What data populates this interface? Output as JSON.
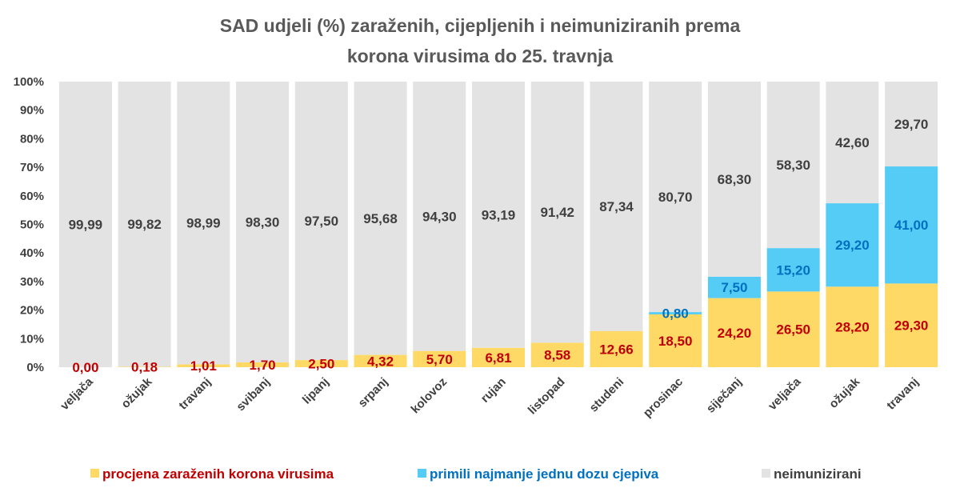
{
  "chart_data": {
    "type": "bar",
    "stacked": true,
    "title": [
      "SAD udjeli (%) zaraženih, cijepljenih i neimuniziranih prema",
      "korona virusima do 25. travnja"
    ],
    "title_color": "#595959",
    "axis_label_color": "#404040",
    "categories": [
      "veljača",
      "ožujak",
      "travanj",
      "svibanj",
      "lipanj",
      "srpanj",
      "kolovoz",
      "rujan",
      "listopad",
      "studeni",
      "prosinac",
      "siječanj",
      "veljača",
      "ožujak",
      "travanj"
    ],
    "ylim": [
      0,
      100
    ],
    "y_ticks": [
      0,
      10,
      20,
      30,
      40,
      50,
      60,
      70,
      80,
      90,
      100
    ],
    "y_tick_labels": [
      "0%",
      "10%",
      "20%",
      "30%",
      "40%",
      "50%",
      "60%",
      "70%",
      "80%",
      "90%",
      "100%"
    ],
    "xlabel": "",
    "ylabel": "",
    "grid": false,
    "legend_position": "bottom",
    "series": [
      {
        "key": "infected",
        "name": "procjena zaraženih korona virusima",
        "color": "#FFD966",
        "label_color": "#C00000",
        "values": [
          0.0,
          0.18,
          1.01,
          1.7,
          2.5,
          4.32,
          5.7,
          6.81,
          8.58,
          12.66,
          18.5,
          24.2,
          26.5,
          28.2,
          29.3
        ],
        "labels": [
          "0,00",
          "0,18",
          "1,01",
          "1,70",
          "2,50",
          "4,32",
          "5,70",
          "6,81",
          "8,58",
          "12,66",
          "18,50",
          "24,20",
          "26,50",
          "28,20",
          "29,30"
        ]
      },
      {
        "key": "vaccinated",
        "name": "primili najmanje jednu dozu cjepiva",
        "color": "#55CCF5",
        "label_color": "#0070C0",
        "values": [
          null,
          null,
          null,
          null,
          null,
          null,
          null,
          null,
          null,
          null,
          0.8,
          7.5,
          15.2,
          29.2,
          41.0
        ],
        "labels": [
          null,
          null,
          null,
          null,
          null,
          null,
          null,
          null,
          null,
          null,
          "0,80",
          "7,50",
          "15,20",
          "29,20",
          "41,00"
        ]
      },
      {
        "key": "unimmunized",
        "name": "neimunizirani",
        "color": "#E3E3E3",
        "label_color": "#404040",
        "values": [
          99.99,
          99.82,
          98.99,
          98.3,
          97.5,
          95.68,
          94.3,
          93.19,
          91.42,
          87.34,
          80.7,
          68.3,
          58.3,
          42.6,
          29.7
        ],
        "labels": [
          "99,99",
          "99,82",
          "98,99",
          "98,30",
          "97,50",
          "95,68",
          "94,30",
          "93,19",
          "91,42",
          "87,34",
          "80,70",
          "68,30",
          "58,30",
          "42,60",
          "29,70"
        ]
      }
    ]
  }
}
